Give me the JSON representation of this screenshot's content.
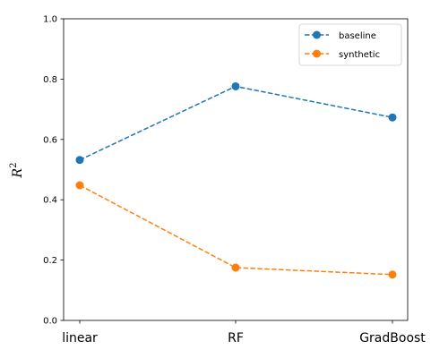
{
  "chart_data": {
    "type": "line",
    "title": "",
    "xlabel": "",
    "ylabel": "R",
    "ylabel_superscript": "2",
    "categories": [
      "linear",
      "RF",
      "GradBoost"
    ],
    "ylim": [
      0.0,
      1.0
    ],
    "yticks": [
      "0.0",
      "0.2",
      "0.4",
      "0.6",
      "0.8",
      "1.0"
    ],
    "grid": false,
    "legend_position": "top-right",
    "series": [
      {
        "name": "baseline",
        "color": "#1f77b4",
        "line_style": "dashed",
        "marker": "circle",
        "values": [
          0.532,
          0.776,
          0.673
        ]
      },
      {
        "name": "synthetic",
        "color": "#ff7f0e",
        "line_style": "dashed",
        "marker": "circle",
        "values": [
          0.448,
          0.175,
          0.152
        ]
      }
    ]
  }
}
